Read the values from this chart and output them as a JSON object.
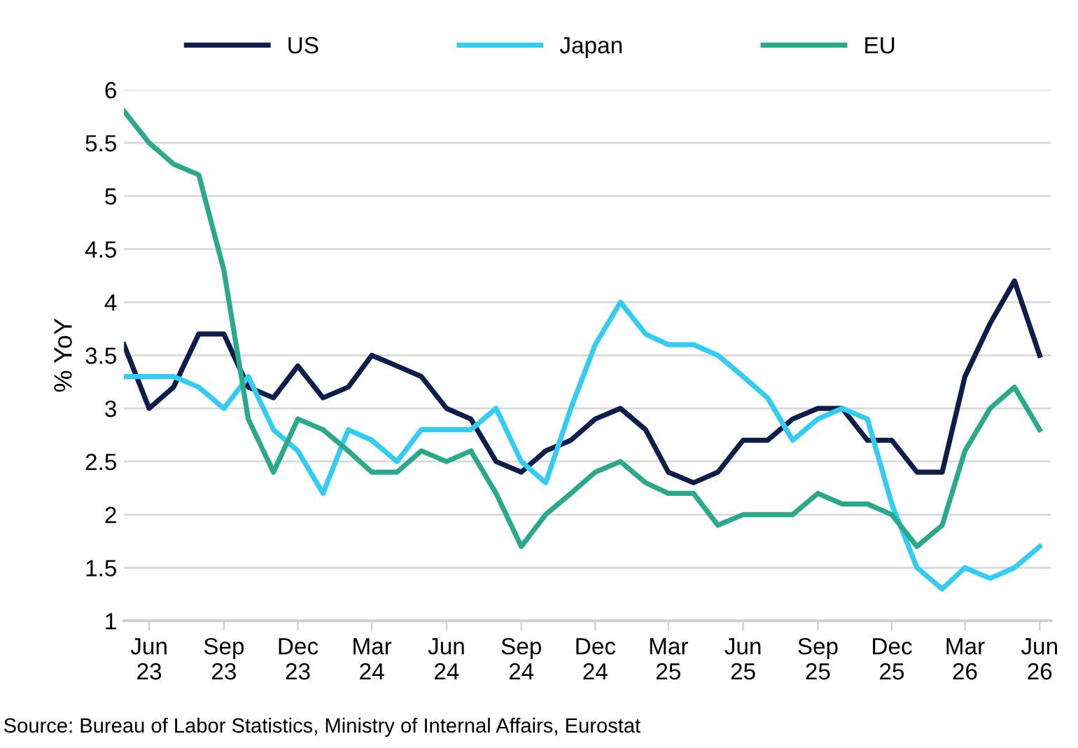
{
  "chart_data": {
    "type": "line",
    "ylabel": "% YoY",
    "x": [
      "2023-05",
      "2023-06",
      "2023-07",
      "2023-08",
      "2023-09",
      "2023-10",
      "2023-11",
      "2023-12",
      "2024-01",
      "2024-02",
      "2024-03",
      "2024-04",
      "2024-05",
      "2024-06",
      "2024-07",
      "2024-08",
      "2024-09",
      "2024-10",
      "2024-11",
      "2024-12",
      "2025-01",
      "2025-02",
      "2025-03",
      "2025-04",
      "2025-05",
      "2025-06",
      "2025-07",
      "2025-08",
      "2025-09",
      "2025-10",
      "2025-11",
      "2025-12",
      "2026-01",
      "2026-02",
      "2026-03",
      "2026-04",
      "2026-05",
      "2026-06"
    ],
    "series": [
      {
        "name": "US",
        "color": "#0d1e4a",
        "values": [
          3.6,
          3.0,
          3.2,
          3.7,
          3.7,
          3.2,
          3.1,
          3.4,
          3.1,
          3.2,
          3.5,
          3.4,
          3.3,
          3.0,
          2.9,
          2.5,
          2.4,
          2.6,
          2.7,
          2.9,
          3.0,
          2.8,
          2.4,
          2.3,
          2.4,
          2.7,
          2.7,
          2.9,
          3.0,
          3.0,
          2.7,
          2.7,
          2.4,
          2.4,
          3.3,
          3.8,
          4.2,
          3.5
        ]
      },
      {
        "name": "Japan",
        "color": "#33ccf5",
        "values": [
          3.3,
          3.3,
          3.3,
          3.2,
          3.0,
          3.3,
          2.8,
          2.6,
          2.2,
          2.8,
          2.7,
          2.5,
          2.8,
          2.8,
          2.8,
          3.0,
          2.5,
          2.3,
          3.0,
          3.6,
          4.0,
          3.7,
          3.6,
          3.6,
          3.5,
          3.3,
          3.1,
          2.7,
          2.9,
          3.0,
          2.9,
          2.1,
          1.5,
          1.3,
          1.5,
          1.4,
          1.5,
          1.7
        ]
      },
      {
        "name": "EU",
        "color": "#2aaa8a",
        "values": [
          5.8,
          5.5,
          5.3,
          5.2,
          4.3,
          2.9,
          2.4,
          2.9,
          2.8,
          2.6,
          2.4,
          2.4,
          2.6,
          2.5,
          2.6,
          2.2,
          1.7,
          2.0,
          2.2,
          2.4,
          2.5,
          2.3,
          2.2,
          2.2,
          1.9,
          2.0,
          2.0,
          2.0,
          2.2,
          2.1,
          2.1,
          2.0,
          1.7,
          1.9,
          2.6,
          3.0,
          3.2,
          2.8
        ]
      }
    ],
    "xlim": [
      "2023-05",
      "2026-06-15"
    ],
    "xticks": [
      {
        "value": "2023-06",
        "label": "Jun\n23"
      },
      {
        "value": "2023-09",
        "label": "Sep\n23"
      },
      {
        "value": "2023-12",
        "label": "Dec\n23"
      },
      {
        "value": "2024-03",
        "label": "Mar\n24"
      },
      {
        "value": "2024-06",
        "label": "Jun\n24"
      },
      {
        "value": "2024-09",
        "label": "Sep\n24"
      },
      {
        "value": "2024-12",
        "label": "Dec\n24"
      },
      {
        "value": "2025-03",
        "label": "Mar\n25"
      },
      {
        "value": "2025-06",
        "label": "Jun\n25"
      },
      {
        "value": "2025-09",
        "label": "Sep\n25"
      },
      {
        "value": "2025-12",
        "label": "Dec\n25"
      },
      {
        "value": "2026-03",
        "label": "Mar\n26"
      },
      {
        "value": "2026-06",
        "label": "Jun\n26"
      }
    ],
    "ylim": [
      1,
      6
    ],
    "yticks": [
      1,
      1.5,
      2,
      2.5,
      3,
      3.5,
      4,
      4.5,
      5,
      5.5,
      6
    ],
    "grid": "y",
    "legend": "top",
    "marker": "none",
    "line_style": "solid",
    "annotations": [
      "Source: Bureau of Labor Statistics, Ministry of Internal Affairs, Eurostat"
    ]
  }
}
